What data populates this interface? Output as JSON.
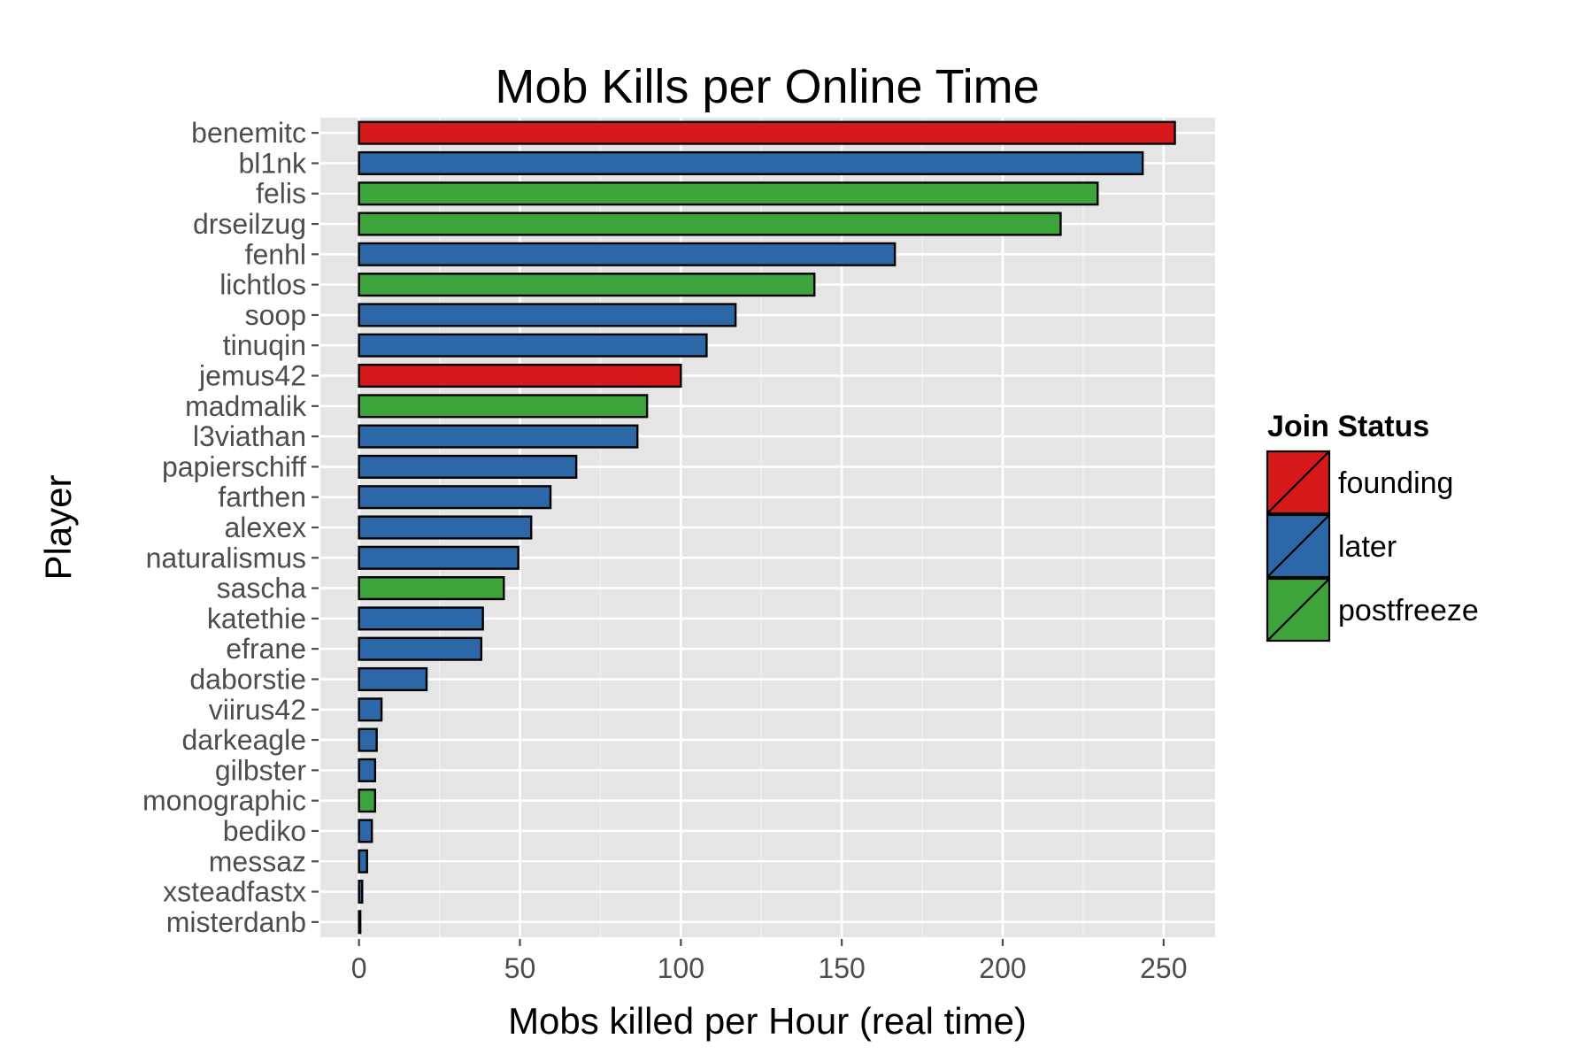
{
  "chart_data": {
    "type": "bar",
    "orientation": "horizontal",
    "title": "Mob Kills per Online Time",
    "xlabel": "Mobs killed per Hour (real time)",
    "ylabel": "Player",
    "xlim": [
      -12,
      266
    ],
    "xticks": [
      0,
      50,
      100,
      150,
      200,
      250
    ],
    "grid": true,
    "legend": {
      "title": "Join Status",
      "position": "right",
      "entries": [
        {
          "name": "founding",
          "color": "#d7191c"
        },
        {
          "name": "later",
          "color": "#2c67a8"
        },
        {
          "name": "postfreeze",
          "color": "#3ea33a"
        }
      ]
    },
    "categories": [
      "benemitc",
      "bl1nk",
      "felis",
      "drseilzug",
      "fenhl",
      "lichtlos",
      "soop",
      "tinuqin",
      "jemus42",
      "madmalik",
      "l3viathan",
      "papierschiff",
      "farthen",
      "alexex",
      "naturalismus",
      "sascha",
      "katethie",
      "efrane",
      "daborstie",
      "viirus42",
      "darkeagle",
      "gilbster",
      "monographic",
      "bediko",
      "messaz",
      "xsteadfastx",
      "misterdanb"
    ],
    "values": [
      253.5,
      243.5,
      229.5,
      218,
      166.5,
      141.5,
      117,
      108,
      100,
      89.5,
      86.5,
      67.5,
      59.5,
      53.5,
      49.5,
      45,
      38.5,
      38,
      21,
      7,
      5.5,
      5,
      5,
      4,
      2.5,
      1,
      0.3
    ],
    "groups": [
      "founding",
      "later",
      "postfreeze",
      "postfreeze",
      "later",
      "postfreeze",
      "later",
      "later",
      "founding",
      "postfreeze",
      "later",
      "later",
      "later",
      "later",
      "later",
      "postfreeze",
      "later",
      "later",
      "later",
      "later",
      "later",
      "later",
      "postfreeze",
      "later",
      "later",
      "later",
      "later"
    ]
  }
}
